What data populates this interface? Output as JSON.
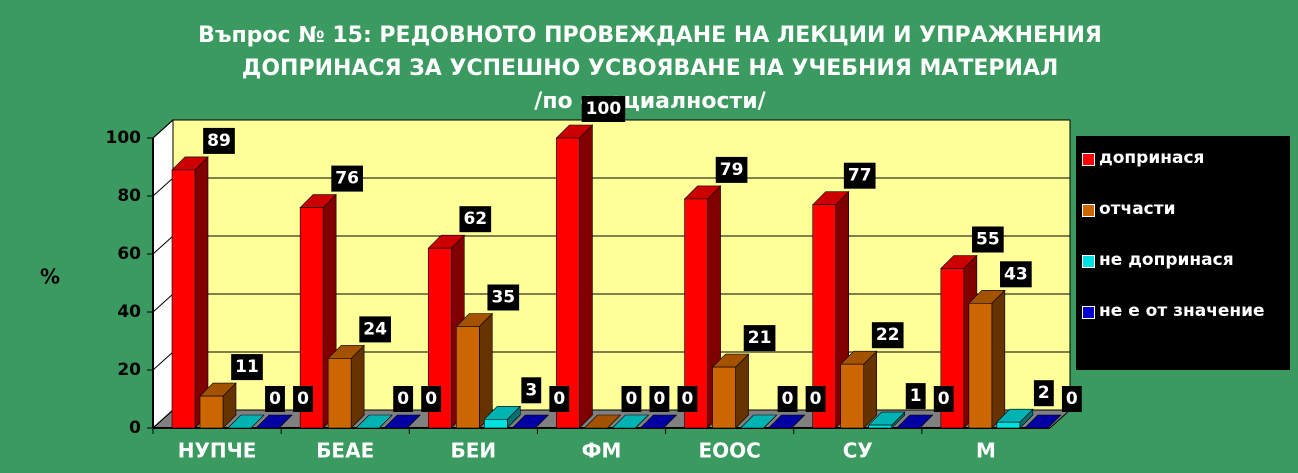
{
  "chart_data": {
    "type": "bar3d",
    "title": [
      "Въпрос № 15: РЕДОВНОТО ПРОВЕЖДАНЕ НА ЛЕКЦИИ И УПРАЖНЕНИЯ",
      "ДОПРИНАСЯ ЗА УСПЕШНО УСВОЯВАНЕ НА УЧЕБНИЯ МАТЕРИАЛ",
      "/по специалности/"
    ],
    "y_label": "%",
    "categories": [
      "НУПЧЕ",
      "БЕАЕ",
      "БЕИ",
      "ФМ",
      "ЕООС",
      "СУ",
      "М"
    ],
    "series": [
      {
        "name": "допринася",
        "color": "#ff0000",
        "values": [
          89,
          76,
          62,
          100,
          79,
          77,
          55
        ]
      },
      {
        "name": "отчасти",
        "color": "#cc6600",
        "values": [
          11,
          24,
          35,
          0,
          21,
          22,
          43
        ]
      },
      {
        "name": "не допринася",
        "color": "#00e0e0",
        "values": [
          0,
          0,
          3,
          0,
          0,
          1,
          2
        ]
      },
      {
        "name": "не е от значение",
        "color": "#0000cc",
        "values": [
          0,
          0,
          0,
          0,
          0,
          0,
          0
        ]
      }
    ],
    "ylim": [
      0,
      100
    ],
    "yticks": [
      0,
      20,
      40,
      60,
      80,
      100
    ],
    "grid": true,
    "legend": "right"
  }
}
